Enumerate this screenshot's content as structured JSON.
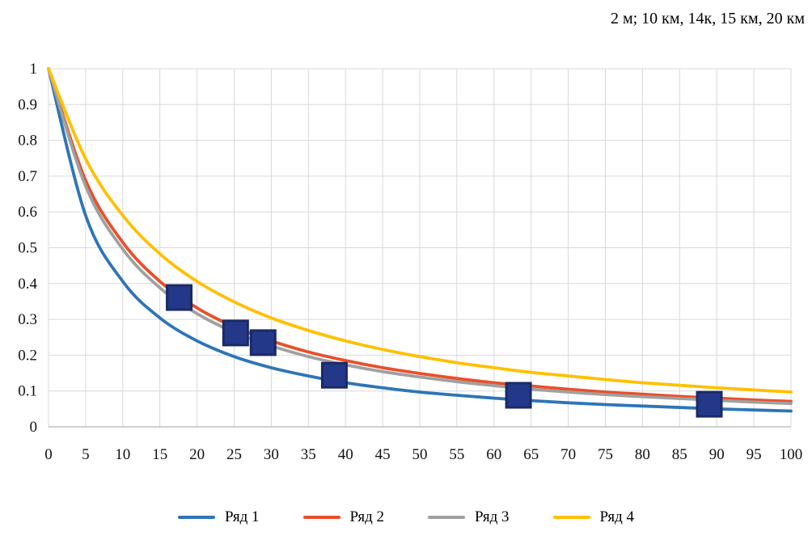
{
  "chart_data": {
    "type": "line",
    "title": "2 м; 10 км, 14к, 15 км, 20 км",
    "xlabel": "",
    "ylabel": "",
    "xlim": [
      0,
      100
    ],
    "ylim": [
      0,
      1
    ],
    "grid": true,
    "legend_position": "bottom",
    "x_ticks": [
      0,
      5,
      10,
      15,
      20,
      25,
      30,
      35,
      40,
      45,
      50,
      55,
      60,
      65,
      70,
      75,
      80,
      85,
      90,
      95,
      100
    ],
    "y_ticks": [
      0,
      0.1,
      0.2,
      0.3,
      0.4,
      0.5,
      0.6,
      0.7,
      0.8,
      0.9,
      1
    ],
    "x": [
      0,
      5,
      10,
      15,
      20,
      25,
      30,
      35,
      40,
      45,
      50,
      55,
      60,
      65,
      70,
      75,
      80,
      85,
      90,
      95,
      100
    ],
    "series": [
      {
        "name": "Ряд 1",
        "color": "#2E75B6",
        "values": [
          1,
          0.59,
          0.406,
          0.304,
          0.24,
          0.196,
          0.165,
          0.142,
          0.123,
          0.109,
          0.097,
          0.088,
          0.08,
          0.073,
          0.067,
          0.062,
          0.058,
          0.054,
          0.05,
          0.047,
          0.044
        ]
      },
      {
        "name": "Ряд 2",
        "color": "#E8502B",
        "values": [
          1,
          0.688,
          0.515,
          0.406,
          0.332,
          0.279,
          0.24,
          0.209,
          0.185,
          0.165,
          0.149,
          0.135,
          0.123,
          0.114,
          0.105,
          0.097,
          0.091,
          0.085,
          0.08,
          0.075,
          0.071
        ]
      },
      {
        "name": "Ряд 3",
        "color": "#A0A0A0",
        "values": [
          1,
          0.672,
          0.496,
          0.388,
          0.316,
          0.264,
          0.226,
          0.196,
          0.173,
          0.154,
          0.139,
          0.126,
          0.115,
          0.105,
          0.097,
          0.09,
          0.084,
          0.079,
          0.074,
          0.069,
          0.065
        ]
      },
      {
        "name": "Ряд 4",
        "color": "#FFC000",
        "values": [
          1,
          0.748,
          0.59,
          0.483,
          0.406,
          0.349,
          0.304,
          0.269,
          0.24,
          0.216,
          0.196,
          0.179,
          0.165,
          0.152,
          0.142,
          0.132,
          0.123,
          0.116,
          0.109,
          0.103,
          0.097
        ]
      }
    ],
    "markers": {
      "shape": "square",
      "color": "#24388A",
      "border": "#1A2A66",
      "points": [
        [
          17.6,
          0.361
        ],
        [
          25.2,
          0.262
        ],
        [
          28.9,
          0.235
        ],
        [
          38.5,
          0.144
        ],
        [
          63.3,
          0.088
        ],
        [
          89.0,
          0.063
        ]
      ]
    },
    "colors": {
      "grid": "#D9D9D9",
      "axis": "#BFBFBF",
      "text": "#000000"
    }
  }
}
